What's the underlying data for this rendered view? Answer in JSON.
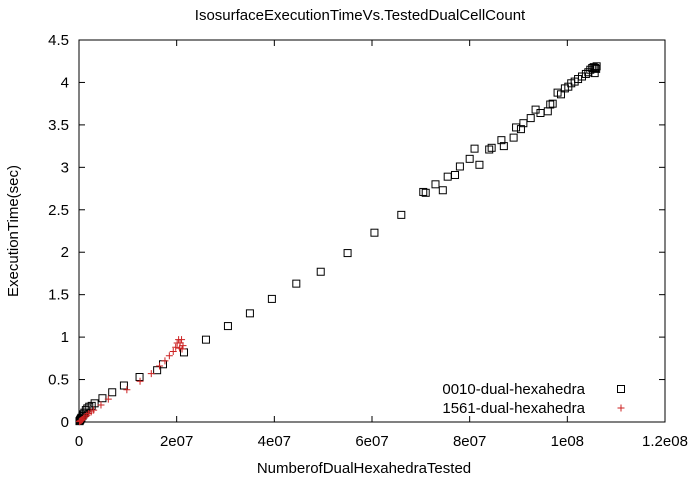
{
  "chart_data": {
    "type": "scatter",
    "title": "IsosurfaceExecutionTimeVs.TestedDualCellCount",
    "xlabel": "NumberofDualHexahedraTested",
    "ylabel": "ExecutionTime(sec)",
    "xlim": [
      0,
      120000000
    ],
    "ylim": [
      0,
      4.5
    ],
    "xticks": [
      {
        "value": 0,
        "label": "0"
      },
      {
        "value": 20000000,
        "label": "2e07"
      },
      {
        "value": 40000000,
        "label": "4e07"
      },
      {
        "value": 60000000,
        "label": "6e07"
      },
      {
        "value": 80000000,
        "label": "8e07"
      },
      {
        "value": 100000000,
        "label": "1e08"
      },
      {
        "value": 120000000,
        "label": "1.2e08"
      }
    ],
    "yticks": [
      {
        "value": 0,
        "label": "0"
      },
      {
        "value": 0.5,
        "label": "0.5"
      },
      {
        "value": 1,
        "label": "1"
      },
      {
        "value": 1.5,
        "label": "1.5"
      },
      {
        "value": 2,
        "label": "2"
      },
      {
        "value": 2.5,
        "label": "2.5"
      },
      {
        "value": 3,
        "label": "3"
      },
      {
        "value": 3.5,
        "label": "3.5"
      },
      {
        "value": 4,
        "label": "4"
      },
      {
        "value": 4.5,
        "label": "4.5"
      }
    ],
    "grid": false,
    "legend_position": "bottom-right",
    "series": [
      {
        "name": "0010-dual-hexahedra",
        "marker": "square",
        "color": "#000000",
        "points": [
          [
            100000,
            0.01
          ],
          [
            200000,
            0.02
          ],
          [
            300000,
            0.03
          ],
          [
            400000,
            0.04
          ],
          [
            500000,
            0.05
          ],
          [
            700000,
            0.07
          ],
          [
            900000,
            0.09
          ],
          [
            1100000,
            0.11
          ],
          [
            1400000,
            0.14
          ],
          [
            1700000,
            0.16
          ],
          [
            2100000,
            0.18
          ],
          [
            2600000,
            0.19
          ],
          [
            3200000,
            0.22
          ],
          [
            4800000,
            0.28
          ],
          [
            6800000,
            0.35
          ],
          [
            9200000,
            0.43
          ],
          [
            12400000,
            0.53
          ],
          [
            16000000,
            0.61
          ],
          [
            17200000,
            0.68
          ],
          [
            21500000,
            0.82
          ],
          [
            26000000,
            0.97
          ],
          [
            30500000,
            1.13
          ],
          [
            35000000,
            1.28
          ],
          [
            39500000,
            1.45
          ],
          [
            44500000,
            1.63
          ],
          [
            49500000,
            1.77
          ],
          [
            55000000,
            1.99
          ],
          [
            60500000,
            2.23
          ],
          [
            66000000,
            2.44
          ],
          [
            70500000,
            2.71
          ],
          [
            71000000,
            2.7
          ],
          [
            73000000,
            2.8
          ],
          [
            74500000,
            2.73
          ],
          [
            75500000,
            2.89
          ],
          [
            77000000,
            2.91
          ],
          [
            78000000,
            3.01
          ],
          [
            80000000,
            3.1
          ],
          [
            81000000,
            3.22
          ],
          [
            82000000,
            3.03
          ],
          [
            84000000,
            3.21
          ],
          [
            84500000,
            3.23
          ],
          [
            86500000,
            3.32
          ],
          [
            87000000,
            3.25
          ],
          [
            89000000,
            3.35
          ],
          [
            89500000,
            3.47
          ],
          [
            90500000,
            3.45
          ],
          [
            91000000,
            3.52
          ],
          [
            92500000,
            3.58
          ],
          [
            93500000,
            3.68
          ],
          [
            94500000,
            3.64
          ],
          [
            96000000,
            3.66
          ],
          [
            96500000,
            3.74
          ],
          [
            97000000,
            3.75
          ],
          [
            98000000,
            3.88
          ],
          [
            98700000,
            3.86
          ],
          [
            99500000,
            3.93
          ],
          [
            100200000,
            3.95
          ],
          [
            100800000,
            3.99
          ],
          [
            101500000,
            4.01
          ],
          [
            102200000,
            4.04
          ],
          [
            103000000,
            4.07
          ],
          [
            103800000,
            4.1
          ],
          [
            104300000,
            4.12
          ],
          [
            104700000,
            4.15
          ],
          [
            105100000,
            4.17
          ],
          [
            105400000,
            4.18
          ],
          [
            105700000,
            4.17
          ],
          [
            106000000,
            4.19
          ],
          [
            105900000,
            4.16
          ],
          [
            105600000,
            4.11
          ]
        ]
      },
      {
        "name": "1561-dual-hexahedra",
        "marker": "plus",
        "color": "#cc2222",
        "points": [
          [
            100000,
            0.005
          ],
          [
            200000,
            0.01
          ],
          [
            300000,
            0.015
          ],
          [
            500000,
            0.02
          ],
          [
            700000,
            0.03
          ],
          [
            900000,
            0.045
          ],
          [
            1200000,
            0.06
          ],
          [
            1600000,
            0.08
          ],
          [
            2000000,
            0.1
          ],
          [
            2500000,
            0.12
          ],
          [
            3000000,
            0.14
          ],
          [
            4500000,
            0.2
          ],
          [
            6000000,
            0.27
          ],
          [
            9800000,
            0.38
          ],
          [
            12500000,
            0.48
          ],
          [
            14800000,
            0.57
          ],
          [
            16500000,
            0.66
          ],
          [
            17600000,
            0.72
          ],
          [
            18500000,
            0.78
          ],
          [
            19300000,
            0.83
          ],
          [
            19800000,
            0.88
          ],
          [
            20100000,
            0.93
          ],
          [
            20400000,
            0.97
          ],
          [
            20700000,
            0.93
          ],
          [
            21000000,
            0.97
          ],
          [
            20600000,
            0.87
          ],
          [
            21100000,
            0.86
          ],
          [
            21300000,
            0.9
          ]
        ]
      }
    ]
  }
}
